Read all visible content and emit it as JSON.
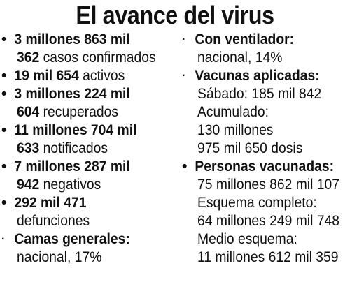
{
  "title": "El avance del virus",
  "left_column": [
    {
      "line1_bold": "3 millones 863 mil",
      "line2_bold": "362",
      "line2_regular": " casos confirmados"
    },
    {
      "line1_bold": "19 mil 654",
      "line1_regular": " activos"
    },
    {
      "line1_bold": "3 millones 224 mil",
      "line2_bold": "604",
      "line2_regular": " recuperados"
    },
    {
      "line1_bold": "11 millones 704 mil",
      "line2_bold": "633",
      "line2_regular": " notificados"
    },
    {
      "line1_bold": "7 millones 287 mil",
      "line2_bold": "942",
      "line2_regular": " negativos"
    },
    {
      "line1_bold": "292 mil 471",
      "line2_regular": "defunciones"
    },
    {
      "line1_bold": "Camas generales:",
      "line2_regular": "nacional, 17%"
    }
  ],
  "right_column": {
    "ventilador": {
      "heading": "Con ventilador:",
      "value": "nacional, 14%"
    },
    "vacunas": {
      "heading": "Vacunas aplicadas:",
      "lines": [
        "Sábado: 185 mil 842",
        "Acumulado:",
        "130 millones",
        "975 mil 650 dosis"
      ]
    },
    "personas": {
      "heading": "Personas vacunadas:",
      "lines": [
        "75 millones 862 mil 107",
        "Esquema completo:",
        "64 millones 249 mil 748",
        "Medio esquema:",
        "11 millones 612 mil 359"
      ]
    }
  },
  "bullet_large": "•",
  "bullet_small": "·"
}
